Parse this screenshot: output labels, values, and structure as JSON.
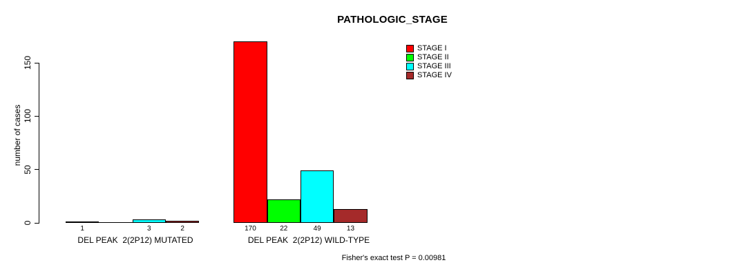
{
  "chart_data": {
    "type": "bar",
    "title": "PATHOLOGIC_STAGE",
    "xlabel": "",
    "ylabel": "number of cases",
    "ylim": [
      0,
      170
    ],
    "yticks": [
      0,
      50,
      100,
      150
    ],
    "grid": false,
    "categories": [
      "STAGE I",
      "STAGE II",
      "STAGE III",
      "STAGE IV"
    ],
    "colors": [
      "#FF0000",
      "#00FF00",
      "#00FFFF",
      "#A52A2A"
    ],
    "groups": [
      {
        "label": "DEL PEAK  2(2P12) MUTATED",
        "values": [
          1,
          0,
          3,
          2
        ],
        "bar_labels": [
          "1",
          "",
          "3",
          "2"
        ]
      },
      {
        "label": "DEL PEAK  2(2P12) WILD-TYPE",
        "values": [
          170,
          22,
          49,
          13
        ],
        "bar_labels": [
          "170",
          "22",
          "49",
          "13"
        ]
      }
    ],
    "legend": {
      "position": "top-right",
      "entries": [
        {
          "label": "STAGE I",
          "color": "#FF0000"
        },
        {
          "label": "STAGE II",
          "color": "#00FF00"
        },
        {
          "label": "STAGE III",
          "color": "#00FFFF"
        },
        {
          "label": "STAGE IV",
          "color": "#A52A2A"
        }
      ]
    },
    "annotation": "Fisher's exact test P = 0.00981"
  }
}
